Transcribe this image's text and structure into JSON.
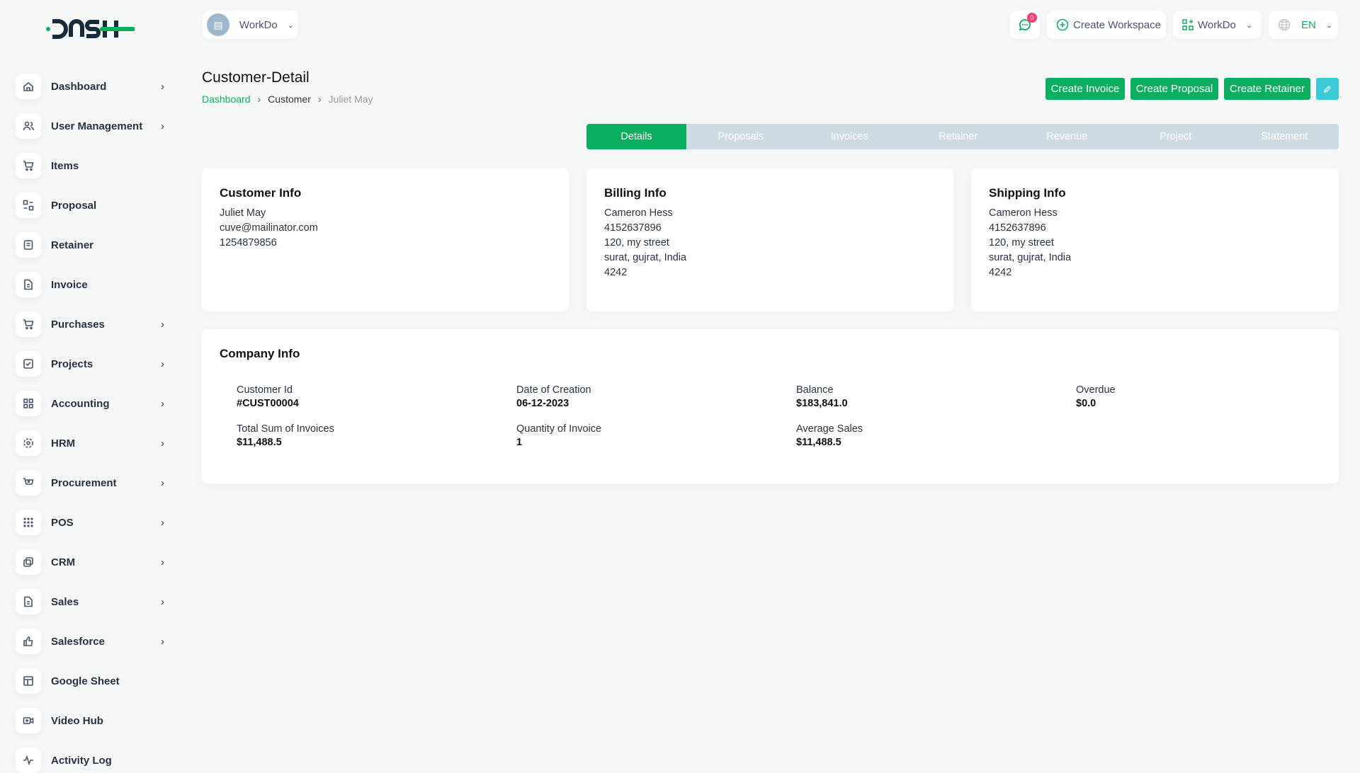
{
  "brand": {
    "logo_text": "DASH"
  },
  "header": {
    "workspace_select": "WorkDo",
    "notification_count": "0",
    "create_workspace": "Create Workspace",
    "app_select": "WorkDo",
    "language": "EN"
  },
  "sidebar": {
    "items": [
      {
        "label": "Dashboard",
        "icon": "home-icon",
        "chevron": true
      },
      {
        "label": "User Management",
        "icon": "users-icon",
        "chevron": true
      },
      {
        "label": "Items",
        "icon": "cart-icon",
        "chevron": false
      },
      {
        "label": "Proposal",
        "icon": "proposal-icon",
        "chevron": false
      },
      {
        "label": "Retainer",
        "icon": "retainer-icon",
        "chevron": false
      },
      {
        "label": "Invoice",
        "icon": "file-icon",
        "chevron": false
      },
      {
        "label": "Purchases",
        "icon": "cart-icon",
        "chevron": true
      },
      {
        "label": "Projects",
        "icon": "checkbox-icon",
        "chevron": true
      },
      {
        "label": "Accounting",
        "icon": "grid-icon",
        "chevron": true
      },
      {
        "label": "HRM",
        "icon": "hrm-icon",
        "chevron": true
      },
      {
        "label": "Procurement",
        "icon": "procurement-icon",
        "chevron": true
      },
      {
        "label": "POS",
        "icon": "dots-grid-icon",
        "chevron": true
      },
      {
        "label": "CRM",
        "icon": "crm-icon",
        "chevron": true
      },
      {
        "label": "Sales",
        "icon": "file-icon",
        "chevron": true
      },
      {
        "label": "Salesforce",
        "icon": "thumbs-up-icon",
        "chevron": true
      },
      {
        "label": "Google Sheet",
        "icon": "table-icon",
        "chevron": false
      },
      {
        "label": "Video Hub",
        "icon": "video-icon",
        "chevron": false
      },
      {
        "label": "Activity Log",
        "icon": "activity-icon",
        "chevron": false
      }
    ]
  },
  "page": {
    "title": "Customer-Detail",
    "breadcrumb": [
      "Dashboard",
      "Customer",
      "Juliet May"
    ]
  },
  "actions": {
    "create_invoice": "Create Invoice",
    "create_proposal": "Create Proposal",
    "create_retainer": "Create Retainer"
  },
  "tabs": [
    "Details",
    "Proposals",
    "Invoices",
    "Retainer",
    "Revenue",
    "Project",
    "Statement"
  ],
  "active_tab": "Details",
  "customer_info": {
    "title": "Customer Info",
    "lines": [
      "Juliet May",
      "cuve@mailinator.com",
      "1254879856"
    ]
  },
  "billing_info": {
    "title": "Billing Info",
    "lines": [
      "Cameron Hess",
      "4152637896",
      "120, my street",
      "surat, gujrat, India",
      "4242"
    ]
  },
  "shipping_info": {
    "title": "Shipping Info",
    "lines": [
      "Cameron Hess",
      "4152637896",
      "120, my street",
      "surat, gujrat, India",
      "4242"
    ]
  },
  "company_info": {
    "title": "Company Info",
    "fields": [
      {
        "label": "Customer Id",
        "value": "#CUST00004"
      },
      {
        "label": "Date of Creation",
        "value": "06-12-2023"
      },
      {
        "label": "Balance",
        "value": "$183,841.0"
      },
      {
        "label": "Overdue",
        "value": "$0.0"
      },
      {
        "label": "Total Sum of Invoices",
        "value": "$11,488.5"
      },
      {
        "label": "Quantity of Invoice",
        "value": "1"
      },
      {
        "label": "Average Sales",
        "value": "$11,488.5"
      }
    ]
  },
  "colors": {
    "primary": "#0caf60",
    "info": "#3ec9d6",
    "tab_bg": "#cfdbe3",
    "badge": "#ff3a6e"
  }
}
